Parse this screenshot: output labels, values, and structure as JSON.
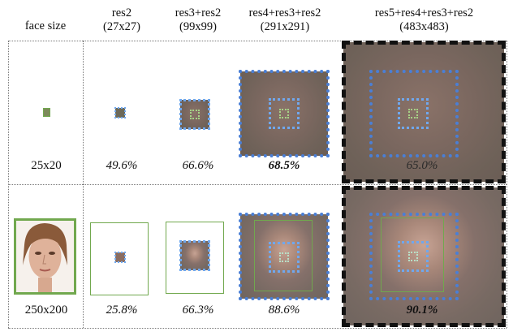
{
  "headers": [
    {
      "line1": "face size",
      "line2": ""
    },
    {
      "line1": "res2",
      "line2": "(27x27)"
    },
    {
      "line1": "res3+res2",
      "line2": "(99x99)"
    },
    {
      "line1": "res4+res3+res2",
      "line2": "(291x291)"
    },
    {
      "line1": "res5+res4+res3+res2",
      "line2": "(483x483)"
    }
  ],
  "row1": {
    "size": "25x20",
    "v1": "49.6%",
    "v2": "66.6%",
    "v3": "68.5%",
    "v4": "65.0%"
  },
  "row2": {
    "size": "250x200",
    "v1": "25.8%",
    "v2": "66.3%",
    "v3": "88.6%",
    "v4": "90.1%"
  },
  "colors": {
    "green": "#71a84e",
    "blue_dark": "#4a7fd6",
    "blue_light": "#6fa8ef",
    "black": "#111111"
  }
}
